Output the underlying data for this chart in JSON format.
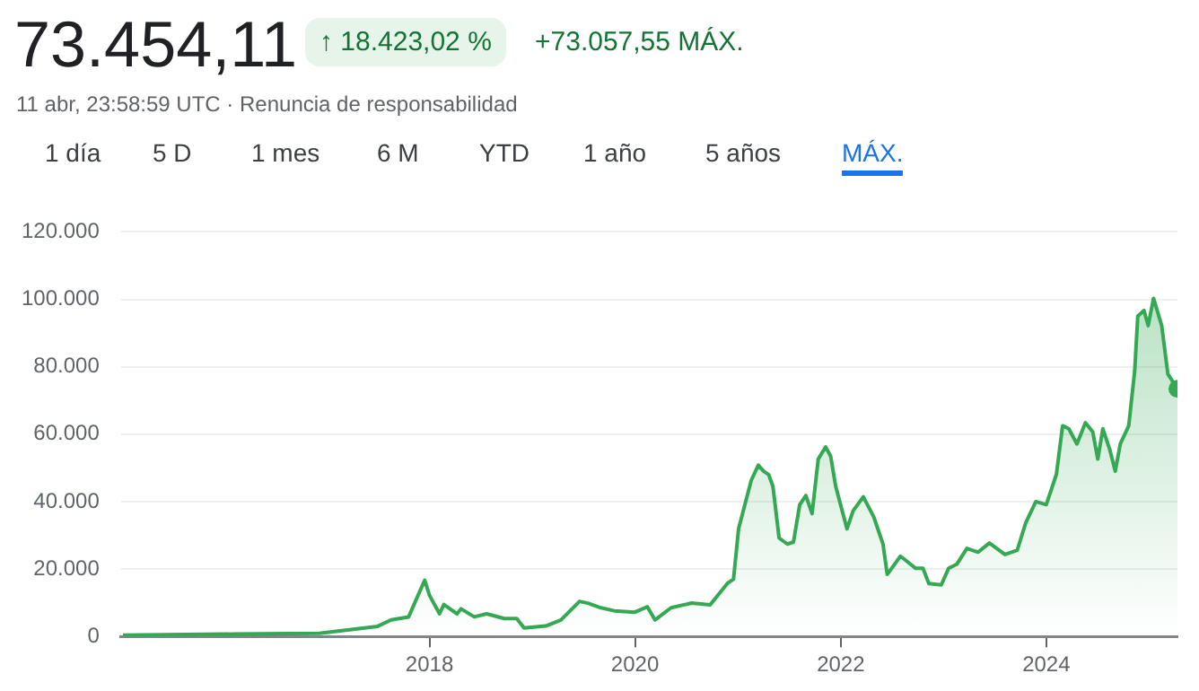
{
  "chart_data": {
    "type": "area",
    "title": "73.454,11",
    "subtitle": "11 abr, 23:58:59 UTC · Renuncia de responsabilidad",
    "annotations": [
      "↑ 18.423,02 %",
      "+73.057,55 MÁX.",
      "1 día",
      "5 D",
      "1 mes",
      "6 M",
      "YTD",
      "1 año",
      "5 años",
      "MÁX."
    ],
    "x": [
      "2015-01-08",
      "2016-02-06",
      "2016-12-06",
      "2017-04-12",
      "2017-07-01",
      "2017-08-18",
      "2017-10-19",
      "2017-12-15",
      "2018-01-01",
      "2018-02-06",
      "2018-02-21",
      "2018-04-09",
      "2018-04-23",
      "2018-06-09",
      "2018-07-23",
      "2018-09-24",
      "2018-11-07",
      "2018-12-03",
      "2019-02-18",
      "2019-04-13",
      "2019-06-18",
      "2019-07-20",
      "2019-09-02",
      "2019-10-20",
      "2020-01-01",
      "2020-02-14",
      "2020-03-12",
      "2020-05-08",
      "2020-07-20",
      "2020-09-24",
      "2020-11-24",
      "2020-12-16",
      "2021-01-03",
      "2021-02-17",
      "2021-03-14",
      "2021-04-02",
      "2021-04-20",
      "2021-05-05",
      "2021-05-27",
      "2021-06-25",
      "2021-07-17",
      "2021-08-08",
      "2021-08-30",
      "2021-09-21",
      "2021-10-13",
      "2021-11-08",
      "2021-11-26",
      "2021-12-14",
      "2022-01-23",
      "2022-02-14",
      "2022-03-22",
      "2022-04-28",
      "2022-05-31",
      "2022-06-15",
      "2022-08-01",
      "2022-09-24",
      "2022-10-20",
      "2022-11-10",
      "2022-12-24",
      "2023-01-19",
      "2023-02-17",
      "2023-03-25",
      "2023-05-04",
      "2023-06-13",
      "2023-08-07",
      "2023-09-20",
      "2023-10-20",
      "2023-11-25",
      "2024-01-01",
      "2024-02-06",
      "2024-02-28",
      "2024-03-21",
      "2024-04-19",
      "2024-05-19",
      "2024-06-14",
      "2024-07-02",
      "2024-07-20",
      "2024-08-14",
      "2024-09-02",
      "2024-09-20",
      "2024-10-20",
      "2024-11-10",
      "2024-11-21",
      "2024-12-13",
      "2024-12-28",
      "2025-01-16",
      "2025-02-14",
      "2025-03-08",
      "2025-04-11"
    ],
    "series": [
      {
        "color": "#34a853",
        "values": [
          400,
          700,
          900,
          2200,
          3000,
          4900,
          5800,
          16700,
          12200,
          6700,
          9500,
          6700,
          8200,
          5800,
          6700,
          5300,
          5300,
          2500,
          3100,
          4900,
          10400,
          9800,
          8500,
          7600,
          7200,
          8800,
          4900,
          8500,
          9900,
          9400,
          15700,
          17000,
          31900,
          46300,
          50800,
          49000,
          48000,
          44500,
          29200,
          27400,
          28000,
          39000,
          41800,
          36400,
          52600,
          56200,
          53500,
          44500,
          31900,
          37300,
          41400,
          35500,
          27400,
          18400,
          23800,
          20200,
          20200,
          15700,
          15300,
          20200,
          21400,
          26100,
          25000,
          27700,
          24300,
          25600,
          33700,
          40000,
          39100,
          48100,
          62500,
          61600,
          57100,
          63400,
          60700,
          52600,
          61600,
          55300,
          49000,
          57100,
          62500,
          78700,
          95000,
          96700,
          92200,
          100300,
          92200,
          77800,
          73454
        ]
      }
    ],
    "xlim": [
      "2015-01-01",
      "2025-04-11"
    ],
    "xticks": [
      {
        "value": "2018-01-01",
        "label": "2018"
      },
      {
        "value": "2020-01-01",
        "label": "2020"
      },
      {
        "value": "2022-01-01",
        "label": "2022"
      },
      {
        "value": "2024-01-01",
        "label": "2024"
      }
    ],
    "ylim": [
      0,
      120000
    ],
    "yticks": [
      {
        "value": 0,
        "label": "0"
      },
      {
        "value": 20000,
        "label": "20.000"
      },
      {
        "value": 40000,
        "label": "40.000"
      },
      {
        "value": 60000,
        "label": "60.000"
      },
      {
        "value": 80000,
        "label": "80.000"
      },
      {
        "value": 100000,
        "label": "100.000"
      },
      {
        "value": 120000,
        "label": "120.000"
      }
    ],
    "grid": "y",
    "legend": false,
    "marker": "none",
    "line_style": "solid"
  }
}
